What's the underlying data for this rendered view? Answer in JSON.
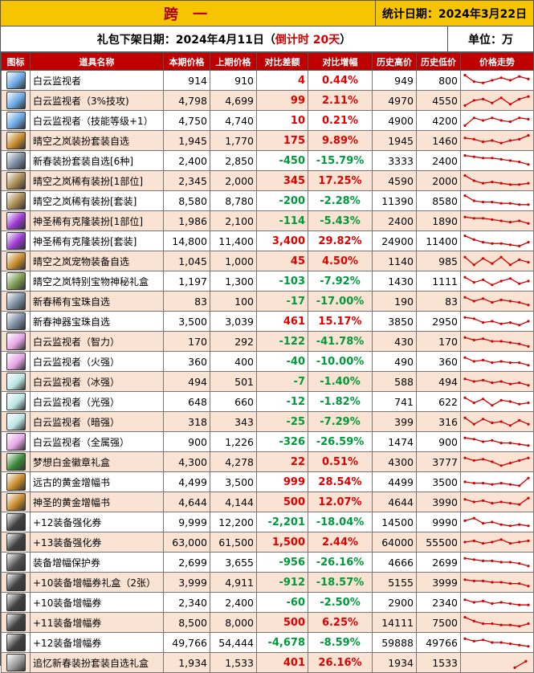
{
  "header": {
    "title": "跨 一",
    "stat_date": "统计日期：2024年3月22日",
    "offline_prefix": "礼包下架日期：2024年4月11日（",
    "countdown": "倒计时 20天",
    "offline_suffix": "）",
    "unit": "单位：万"
  },
  "columns": [
    "图标",
    "道具名称",
    "本期价格",
    "上期价格",
    "对比差额",
    "对比增幅",
    "历史高价",
    "历史低价",
    "价格走势"
  ],
  "colors": {
    "header_bg": "#f6c400",
    "table_header_bg": "#c00000",
    "up": "#e00000",
    "down": "#009a3a",
    "trend_line": "#d40000",
    "even_row": "#fbe3d3"
  },
  "rows": [
    {
      "icon": "monitor-icon",
      "icon_color": "#6aa8e6",
      "name": "白云监视者",
      "cur": "914",
      "prev": "910",
      "diff": "4",
      "pct": "0.44%",
      "high": "949",
      "low": "800",
      "dir": "up",
      "trend": [
        0.1,
        0.6,
        0.7,
        0.5,
        0.3,
        0.5,
        0.2,
        0.4
      ]
    },
    {
      "icon": "monitor-icon",
      "icon_color": "#6aa8e6",
      "name": "白云监视者（3%技攻)",
      "cur": "4,798",
      "prev": "4,699",
      "diff": "99",
      "pct": "2.11%",
      "high": "4970",
      "low": "4550",
      "dir": "up",
      "trend": [
        0.9,
        0.5,
        0.4,
        0.7,
        0.3,
        0.8,
        0.4,
        0.2
      ]
    },
    {
      "icon": "monitor-icon",
      "icon_color": "#6aa8e6",
      "name": "白云监视者（技能等级+1）",
      "cur": "4,750",
      "prev": "4,740",
      "diff": "10",
      "pct": "0.21%",
      "high": "4900",
      "low": "4200",
      "dir": "up",
      "trend": [
        0.9,
        0.3,
        0.5,
        0.3,
        0.5,
        0.6,
        0.3,
        0.4
      ]
    },
    {
      "icon": "box-icon",
      "icon_color": "#c68a2a",
      "name": "晴空之岚装扮套装自选",
      "cur": "1,945",
      "prev": "1,770",
      "diff": "175",
      "pct": "9.89%",
      "high": "1945",
      "low": "1460",
      "dir": "up",
      "trend": [
        0.3,
        0.4,
        0.6,
        0.5,
        0.7,
        0.5,
        0.4,
        0.1
      ]
    },
    {
      "icon": "box-icon",
      "icon_color": "#7a8aa0",
      "name": "新春装扮套装自选[6种]",
      "cur": "2,400",
      "prev": "2,850",
      "diff": "-450",
      "pct": "-15.79%",
      "high": "3333",
      "low": "2400",
      "dir": "down",
      "trend": [
        0.1,
        0.2,
        0.3,
        0.3,
        0.4,
        0.5,
        0.6,
        0.8
      ]
    },
    {
      "icon": "box-icon",
      "icon_color": "#a88a50",
      "name": "晴空之岚稀有装扮[1部位]",
      "cur": "2,345",
      "prev": "2,000",
      "diff": "345",
      "pct": "17.25%",
      "high": "4590",
      "low": "2000",
      "dir": "up",
      "trend": [
        0.1,
        0.5,
        0.7,
        0.6,
        0.7,
        0.8,
        0.8,
        0.7
      ]
    },
    {
      "icon": "box-icon",
      "icon_color": "#a88a50",
      "name": "晴空之岚稀有装扮[套装]",
      "cur": "8,580",
      "prev": "8,780",
      "diff": "-200",
      "pct": "-2.28%",
      "high": "11390",
      "low": "8580",
      "dir": "down",
      "trend": [
        0.1,
        0.5,
        0.6,
        0.6,
        0.7,
        0.7,
        0.8,
        0.8
      ]
    },
    {
      "icon": "box-icon",
      "icon_color": "#9a3ad0",
      "name": "神圣稀有克隆装扮[1部位]",
      "cur": "1,986",
      "prev": "2,100",
      "diff": "-114",
      "pct": "-5.43%",
      "high": "2400",
      "low": "1890",
      "dir": "down",
      "trend": [
        0.2,
        0.3,
        0.3,
        0.4,
        0.5,
        0.6,
        0.5,
        0.7
      ]
    },
    {
      "icon": "box-icon",
      "icon_color": "#9a3ad0",
      "name": "神圣稀有克隆装扮[套装]",
      "cur": "14,800",
      "prev": "11,400",
      "diff": "3,400",
      "pct": "29.82%",
      "high": "24900",
      "low": "11400",
      "dir": "up",
      "trend": [
        0.1,
        0.4,
        0.6,
        0.7,
        0.7,
        0.8,
        0.9,
        0.6
      ]
    },
    {
      "icon": "box-icon",
      "icon_color": "#c68a2a",
      "name": "晴空之岚宠物装备自选",
      "cur": "1,045",
      "prev": "1,000",
      "diff": "45",
      "pct": "4.50%",
      "high": "1140",
      "low": "985",
      "dir": "up",
      "trend": [
        0.2,
        0.8,
        0.3,
        0.7,
        0.2,
        0.8,
        0.4,
        0.6
      ]
    },
    {
      "icon": "box-icon",
      "icon_color": "#7a9a50",
      "name": "晴空之岚特别宝物神秘礼盒",
      "cur": "1,197",
      "prev": "1,300",
      "diff": "-103",
      "pct": "-7.92%",
      "high": "1430",
      "low": "1111",
      "dir": "down",
      "trend": [
        0.2,
        0.6,
        0.4,
        0.8,
        0.5,
        0.3,
        0.7,
        0.5
      ]
    },
    {
      "icon": "box-icon",
      "icon_color": "#7a8aa0",
      "name": "新春稀有宝珠自选",
      "cur": "83",
      "prev": "100",
      "diff": "-17",
      "pct": "-17.00%",
      "high": "190",
      "low": "83",
      "dir": "down",
      "trend": [
        0.2,
        0.5,
        0.3,
        0.6,
        0.4,
        0.5,
        0.6,
        0.8
      ]
    },
    {
      "icon": "box-icon",
      "icon_color": "#7a8aa0",
      "name": "新春神器宝珠自选",
      "cur": "3,500",
      "prev": "3,039",
      "diff": "461",
      "pct": "15.17%",
      "high": "3850",
      "low": "2950",
      "dir": "up",
      "trend": [
        0.2,
        0.3,
        0.6,
        0.5,
        0.7,
        0.6,
        0.8,
        0.5
      ]
    },
    {
      "icon": "orb-icon",
      "icon_color": "#e6a6e6",
      "name": "白云监视者（智力）",
      "cur": "170",
      "prev": "292",
      "diff": "-122",
      "pct": "-41.78%",
      "high": "430",
      "low": "170",
      "dir": "down",
      "trend": [
        0.2,
        0.4,
        0.3,
        0.5,
        0.5,
        0.6,
        0.7,
        0.9
      ]
    },
    {
      "icon": "orb-icon",
      "icon_color": "#e6a6e6",
      "name": "白云监视者（火强）",
      "cur": "360",
      "prev": "400",
      "diff": "-40",
      "pct": "-10.00%",
      "high": "490",
      "low": "360",
      "dir": "down",
      "trend": [
        0.2,
        0.5,
        0.4,
        0.6,
        0.5,
        0.6,
        0.6,
        0.8
      ]
    },
    {
      "icon": "orb-icon",
      "icon_color": "#bde6e6",
      "name": "白云监视者（冰强）",
      "cur": "494",
      "prev": "501",
      "diff": "-7",
      "pct": "-1.40%",
      "high": "588",
      "low": "494",
      "dir": "down",
      "trend": [
        0.3,
        0.5,
        0.4,
        0.6,
        0.5,
        0.7,
        0.6,
        0.8
      ]
    },
    {
      "icon": "orb-icon",
      "icon_color": "#bde6e6",
      "name": "白云监视者（光强）",
      "cur": "648",
      "prev": "660",
      "diff": "-12",
      "pct": "-1.82%",
      "high": "741",
      "low": "622",
      "dir": "down",
      "trend": [
        0.2,
        0.6,
        0.3,
        0.8,
        0.4,
        0.5,
        0.7,
        0.6
      ]
    },
    {
      "icon": "orb-icon",
      "icon_color": "#bde6e6",
      "name": "白云监视者（暗强）",
      "cur": "318",
      "prev": "343",
      "diff": "-25",
      "pct": "-7.29%",
      "high": "399",
      "low": "316",
      "dir": "down",
      "trend": [
        0.2,
        0.7,
        0.3,
        0.6,
        0.5,
        0.8,
        0.4,
        0.7
      ]
    },
    {
      "icon": "orb-icon",
      "icon_color": "#e6a6e6",
      "name": "白云监视者（全属强）",
      "cur": "900",
      "prev": "1,226",
      "diff": "-326",
      "pct": "-26.59%",
      "high": "1474",
      "low": "900",
      "dir": "down",
      "trend": [
        0.2,
        0.3,
        0.5,
        0.4,
        0.6,
        0.6,
        0.7,
        0.8
      ]
    },
    {
      "icon": "badge-icon",
      "icon_color": "#3a8a3a",
      "name": "梦想白金徽章礼盒",
      "cur": "4,300",
      "prev": "4,278",
      "diff": "22",
      "pct": "0.51%",
      "high": "4300",
      "low": "3777",
      "dir": "up",
      "trend": [
        0.2,
        0.4,
        0.3,
        0.5,
        0.8,
        0.6,
        0.4,
        0.2
      ]
    },
    {
      "icon": "book-icon",
      "icon_color": "#c68a2a",
      "name": "远古的黄金增幅书",
      "cur": "4,499",
      "prev": "3,500",
      "diff": "999",
      "pct": "28.54%",
      "high": "4499",
      "low": "3500",
      "dir": "up",
      "trend": [
        0.5,
        0.6,
        0.6,
        0.7,
        0.6,
        0.7,
        0.8,
        0.2
      ]
    },
    {
      "icon": "book-icon",
      "icon_color": "#c68a2a",
      "name": "神圣的黄金增幅书",
      "cur": "4,644",
      "prev": "4,144",
      "diff": "500",
      "pct": "12.07%",
      "high": "4644",
      "low": "3990",
      "dir": "up",
      "trend": [
        0.3,
        0.5,
        0.4,
        0.6,
        0.5,
        0.6,
        0.7,
        0.2
      ]
    },
    {
      "icon": "ticket-icon",
      "icon_color": "#404040",
      "name": "+12装备强化券",
      "cur": "9,999",
      "prev": "12,200",
      "diff": "-2,201",
      "pct": "-18.04%",
      "high": "14500",
      "low": "9990",
      "dir": "down",
      "trend": [
        0.4,
        0.2,
        0.6,
        0.5,
        0.7,
        0.8,
        0.7,
        0.8
      ]
    },
    {
      "icon": "ticket-icon",
      "icon_color": "#404040",
      "name": "+13装备强化券",
      "cur": "63,000",
      "prev": "61,500",
      "diff": "1,500",
      "pct": "2.44%",
      "high": "64000",
      "low": "55500",
      "dir": "up",
      "trend": [
        0.5,
        0.4,
        0.6,
        0.5,
        0.3,
        0.6,
        0.5,
        0.4
      ]
    },
    {
      "icon": "shield-icon",
      "icon_color": "#505050",
      "name": "装备增幅保护券",
      "cur": "2,699",
      "prev": "3,655",
      "diff": "-956",
      "pct": "-26.16%",
      "high": "4666",
      "low": "2699",
      "dir": "down",
      "trend": [
        0.2,
        0.3,
        0.4,
        0.4,
        0.5,
        0.5,
        0.6,
        0.8
      ]
    },
    {
      "icon": "ticket-icon",
      "icon_color": "#404040",
      "name": "+10装备增幅券礼盒（2张）",
      "cur": "3,999",
      "prev": "4,911",
      "diff": "-912",
      "pct": "-18.57%",
      "high": "5155",
      "low": "3999",
      "dir": "down",
      "trend": [
        0.3,
        0.4,
        0.4,
        0.5,
        0.5,
        0.6,
        0.6,
        0.8
      ]
    },
    {
      "icon": "ticket-icon",
      "icon_color": "#404040",
      "name": "+10装备增幅券",
      "cur": "2,340",
      "prev": "2,400",
      "diff": "-60",
      "pct": "-2.50%",
      "high": "2900",
      "low": "2340",
      "dir": "down",
      "trend": [
        0.3,
        0.5,
        0.4,
        0.6,
        0.5,
        0.6,
        0.7,
        0.7
      ]
    },
    {
      "icon": "ticket-icon",
      "icon_color": "#404040",
      "name": "+11装备增幅券",
      "cur": "8,500",
      "prev": "8,000",
      "diff": "500",
      "pct": "6.25%",
      "high": "14111",
      "low": "7500",
      "dir": "up",
      "trend": [
        0.1,
        0.4,
        0.6,
        0.6,
        0.7,
        0.7,
        0.8,
        0.6
      ]
    },
    {
      "icon": "ticket-icon",
      "icon_color": "#404040",
      "name": "+12装备增幅券",
      "cur": "49,766",
      "prev": "54,444",
      "diff": "-4,678",
      "pct": "-8.59%",
      "high": "59888",
      "low": "49766",
      "dir": "down",
      "trend": [
        0.2,
        0.4,
        0.3,
        0.5,
        0.5,
        0.6,
        0.7,
        0.8
      ]
    },
    {
      "icon": "box-icon",
      "icon_color": "#9a9a9a",
      "name": "追忆新春装扮套装自选礼盒",
      "cur": "1,934",
      "prev": "1,533",
      "diff": "401",
      "pct": "26.16%",
      "high": "1934",
      "low": "1533",
      "dir": "up",
      "trend": [
        0.9,
        0.4
      ]
    }
  ]
}
